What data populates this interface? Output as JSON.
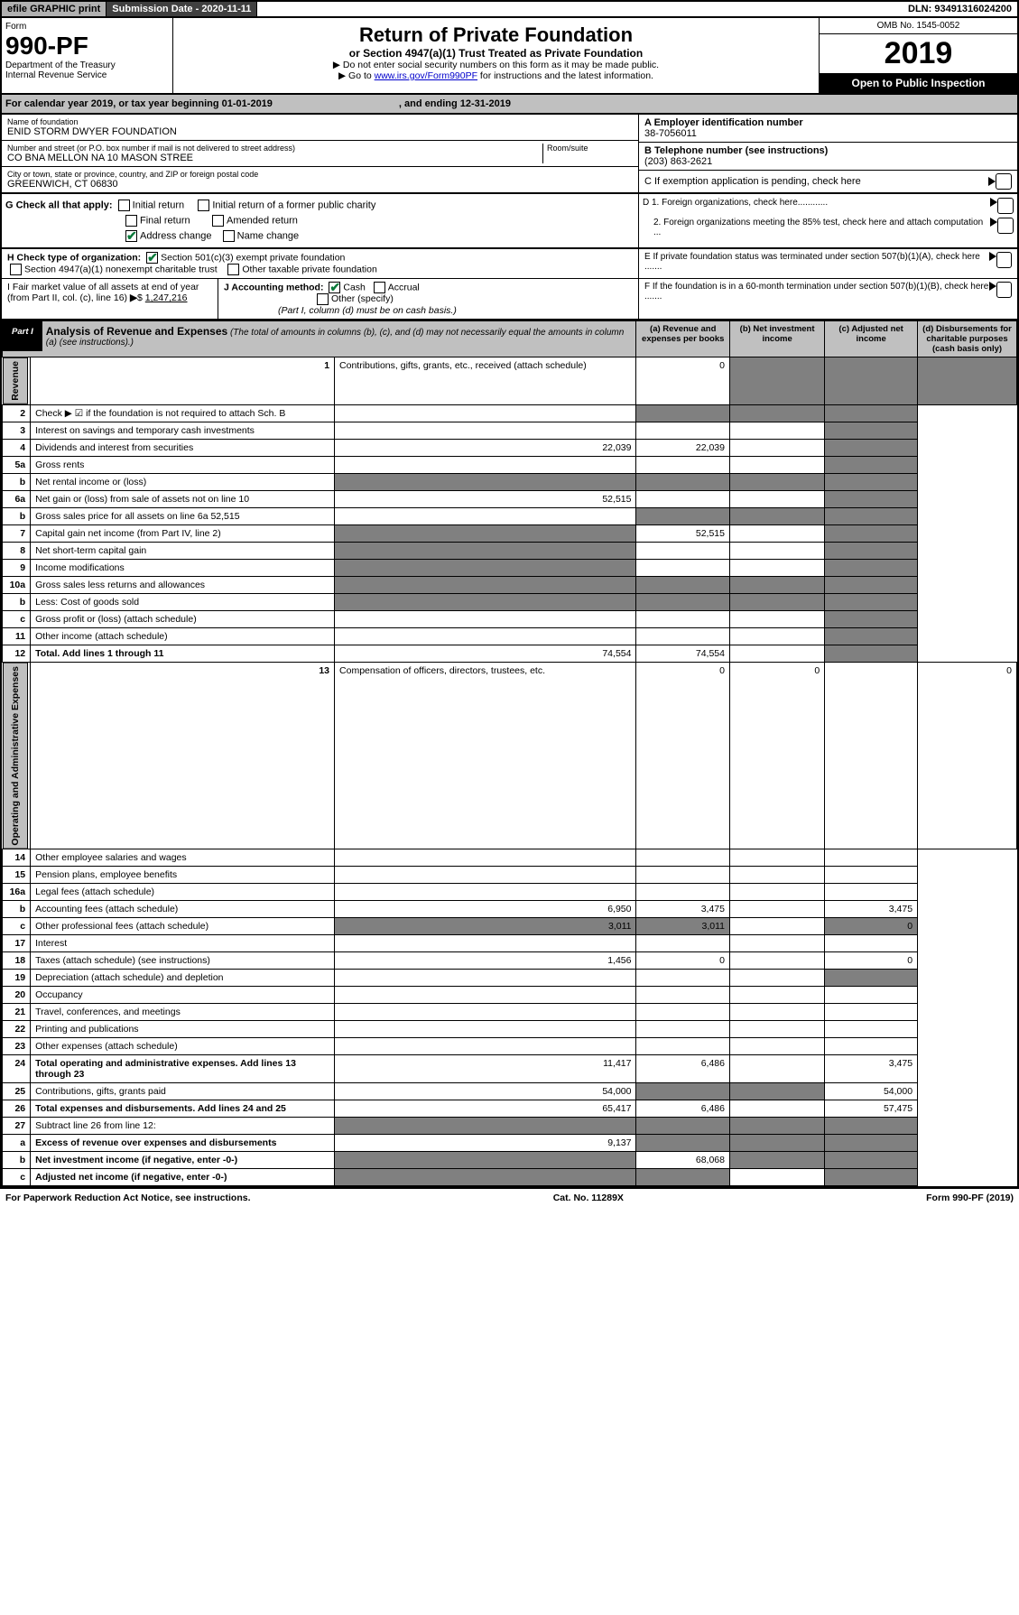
{
  "top": {
    "efile": "efile GRAPHIC print",
    "submission": "Submission Date - 2020-11-11",
    "dln": "DLN: 93491316024200"
  },
  "header": {
    "form_word": "Form",
    "form_number": "990-PF",
    "dept": "Department of the Treasury",
    "irs": "Internal Revenue Service",
    "title": "Return of Private Foundation",
    "subtitle": "or Section 4947(a)(1) Trust Treated as Private Foundation",
    "instr1": "▶ Do not enter social security numbers on this form as it may be made public.",
    "instr2_pre": "▶ Go to ",
    "instr2_link": "www.irs.gov/Form990PF",
    "instr2_post": " for instructions and the latest information.",
    "omb": "OMB No. 1545-0052",
    "year": "2019",
    "inspection": "Open to Public Inspection"
  },
  "cal": {
    "label": "For calendar year 2019, or tax year beginning 01-01-2019",
    "ending": ", and ending 12-31-2019"
  },
  "info": {
    "name_label": "Name of foundation",
    "name": "ENID STORM DWYER FOUNDATION",
    "addr_label": "Number and street (or P.O. box number if mail is not delivered to street address)",
    "addr": "CO BNA MELLON NA 10 MASON STREE",
    "room_label": "Room/suite",
    "city_label": "City or town, state or province, country, and ZIP or foreign postal code",
    "city": "GREENWICH, CT  06830",
    "ein_label": "A Employer identification number",
    "ein": "38-7056011",
    "tel_label": "B Telephone number (see instructions)",
    "tel": "(203) 863-2621",
    "c_label": "C If exemption application is pending, check here"
  },
  "g": {
    "label": "G Check all that apply:",
    "initial": "Initial return",
    "initial_former": "Initial return of a former public charity",
    "final": "Final return",
    "amended": "Amended return",
    "address": "Address change",
    "name_change": "Name change"
  },
  "d": {
    "d1": "D 1. Foreign organizations, check here............",
    "d2": "2. Foreign organizations meeting the 85% test, check here and attach computation ..."
  },
  "h": {
    "label": "H Check type of organization:",
    "opt1": "Section 501(c)(3) exempt private foundation",
    "opt2": "Section 4947(a)(1) nonexempt charitable trust",
    "opt3": "Other taxable private foundation"
  },
  "e": "E  If private foundation status was terminated under section 507(b)(1)(A), check here .......",
  "i": {
    "label": "I Fair market value of all assets at end of year (from Part II, col. (c), line 16)",
    "value": "1,247,216"
  },
  "j": {
    "label": "J Accounting method:",
    "cash": "Cash",
    "accrual": "Accrual",
    "other": "Other (specify)",
    "note": "(Part I, column (d) must be on cash basis.)"
  },
  "f": "F  If the foundation is in a 60-month termination under section 507(b)(1)(B), check here .......",
  "part1": {
    "label": "Part I",
    "title": "Analysis of Revenue and Expenses",
    "title_note": "(The total of amounts in columns (b), (c), and (d) may not necessarily equal the amounts in column (a) (see instructions).)",
    "col_a": "(a) Revenue and expenses per books",
    "col_b": "(b) Net investment income",
    "col_c": "(c) Adjusted net income",
    "col_d": "(d) Disbursements for charitable purposes (cash basis only)"
  },
  "side_labels": {
    "revenue": "Revenue",
    "expenses": "Operating and Administrative Expenses"
  },
  "rows": [
    {
      "n": "1",
      "d": "Contributions, gifts, grants, etc., received (attach schedule)",
      "a": "0"
    },
    {
      "n": "2",
      "d": "Check ▶ ☑ if the foundation is not required to attach Sch. B"
    },
    {
      "n": "3",
      "d": "Interest on savings and temporary cash investments"
    },
    {
      "n": "4",
      "d": "Dividends and interest from securities",
      "a": "22,039",
      "b": "22,039"
    },
    {
      "n": "5a",
      "d": "Gross rents"
    },
    {
      "n": "b",
      "d": "Net rental income or (loss)"
    },
    {
      "n": "6a",
      "d": "Net gain or (loss) from sale of assets not on line 10",
      "a": "52,515"
    },
    {
      "n": "b",
      "d": "Gross sales price for all assets on line 6a         52,515"
    },
    {
      "n": "7",
      "d": "Capital gain net income (from Part IV, line 2)",
      "b": "52,515"
    },
    {
      "n": "8",
      "d": "Net short-term capital gain"
    },
    {
      "n": "9",
      "d": "Income modifications"
    },
    {
      "n": "10a",
      "d": "Gross sales less returns and allowances"
    },
    {
      "n": "b",
      "d": "Less: Cost of goods sold"
    },
    {
      "n": "c",
      "d": "Gross profit or (loss) (attach schedule)"
    },
    {
      "n": "11",
      "d": "Other income (attach schedule)"
    },
    {
      "n": "12",
      "d": "Total. Add lines 1 through 11",
      "a": "74,554",
      "b": "74,554",
      "bold": true
    },
    {
      "n": "13",
      "d": "Compensation of officers, directors, trustees, etc.",
      "a": "0",
      "b": "0",
      "dd": "0"
    },
    {
      "n": "14",
      "d": "Other employee salaries and wages"
    },
    {
      "n": "15",
      "d": "Pension plans, employee benefits"
    },
    {
      "n": "16a",
      "d": "Legal fees (attach schedule)"
    },
    {
      "n": "b",
      "d": "Accounting fees (attach schedule)",
      "a": "6,950",
      "b": "3,475",
      "dd": "3,475"
    },
    {
      "n": "c",
      "d": "Other professional fees (attach schedule)",
      "a": "3,011",
      "b": "3,011",
      "dd": "0"
    },
    {
      "n": "17",
      "d": "Interest"
    },
    {
      "n": "18",
      "d": "Taxes (attach schedule) (see instructions)",
      "a": "1,456",
      "b": "0",
      "dd": "0"
    },
    {
      "n": "19",
      "d": "Depreciation (attach schedule) and depletion"
    },
    {
      "n": "20",
      "d": "Occupancy"
    },
    {
      "n": "21",
      "d": "Travel, conferences, and meetings"
    },
    {
      "n": "22",
      "d": "Printing and publications"
    },
    {
      "n": "23",
      "d": "Other expenses (attach schedule)"
    },
    {
      "n": "24",
      "d": "Total operating and administrative expenses. Add lines 13 through 23",
      "a": "11,417",
      "b": "6,486",
      "dd": "3,475",
      "bold": true
    },
    {
      "n": "25",
      "d": "Contributions, gifts, grants paid",
      "a": "54,000",
      "dd": "54,000"
    },
    {
      "n": "26",
      "d": "Total expenses and disbursements. Add lines 24 and 25",
      "a": "65,417",
      "b": "6,486",
      "dd": "57,475",
      "bold": true
    },
    {
      "n": "27",
      "d": "Subtract line 26 from line 12:"
    },
    {
      "n": "a",
      "d": "Excess of revenue over expenses and disbursements",
      "a": "9,137",
      "bold": true
    },
    {
      "n": "b",
      "d": "Net investment income (if negative, enter -0-)",
      "b": "68,068",
      "bold": true
    },
    {
      "n": "c",
      "d": "Adjusted net income (if negative, enter -0-)",
      "bold": true
    }
  ],
  "footer": {
    "left": "For Paperwork Reduction Act Notice, see instructions.",
    "center": "Cat. No. 11289X",
    "right": "Form 990-PF (2019)"
  },
  "colors": {
    "gray_bg": "#c0c0c0",
    "dark_gray": "#808080",
    "link": "#0000cc",
    "check_green": "#0a7a3a"
  }
}
